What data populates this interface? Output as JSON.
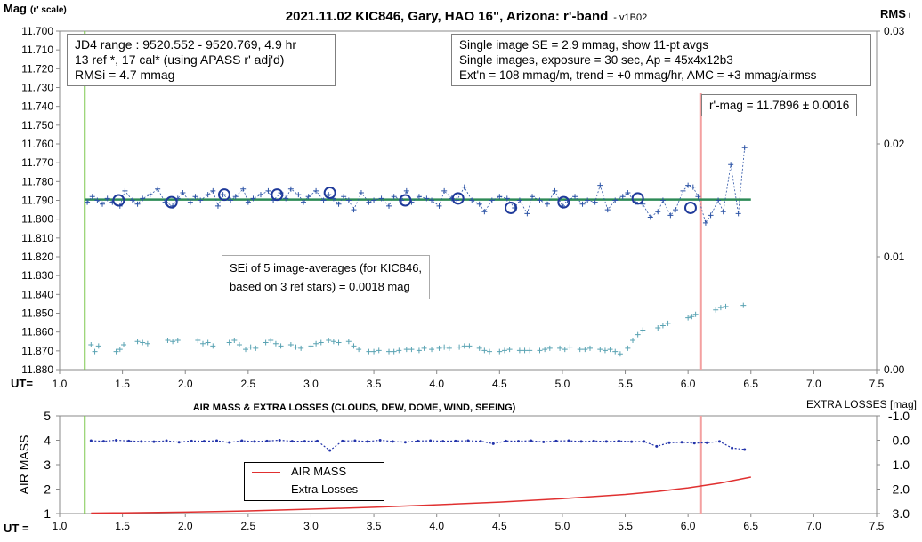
{
  "header": {
    "title": "2021.11.02 KIC846, Gary, HAO 16\", Arizona: r'-band",
    "version": "- v1B02",
    "left_axis_label": "Mag",
    "left_axis_sub": "(r' scale)",
    "right_axis_label": "RMS",
    "right_axis_sub": "i",
    "ut_label": "UT="
  },
  "info_left": [
    "JD4 range : 9520.552 - 9520.769,  4.9  hr",
    "13 ref *, 17 cal* (using APASS r' adj'd)",
    "RMSi = 4.7 mmag"
  ],
  "info_right": [
    "Single image SE = 2.9 mmag, show  11-pt avgs",
    "Single images, exposure = 30 sec, Ap = 45x4x12b3",
    "Ext'n = 108 mmag/m, trend = +0  mmag/hr, AMC = +3 mmag/airmss"
  ],
  "mag_box": "r'-mag = 11.7896 ± 0.0016",
  "sei_box": [
    "SEi of 5 image-averages (for KIC846,",
    "based on 3 ref stars) = 0.0018 mag"
  ],
  "lower": {
    "title": "AIR MASS & EXTRA LOSSES (CLOUDS, DEW, DOME, WIND, SEEING)",
    "left_axis_label": "AIR MASS",
    "right_axis_label": "EXTRA LOSSES [mag]",
    "ut_label": "UT ="
  },
  "legend": {
    "air_mass": "AIR MASS",
    "extra_losses": "Extra Losses"
  },
  "chart_data": [
    {
      "type": "scatter",
      "title": "2021.11.02 KIC846, Gary, HAO 16\", Arizona: r'-band",
      "xlabel": "UT=",
      "ylabel": "Mag (r' scale)",
      "y2label": "RMS i",
      "xlim": [
        1.0,
        7.5
      ],
      "x_ticks": [
        "1.0",
        "1.5",
        "2.0",
        "2.5",
        "3.0",
        "3.5",
        "4.0",
        "4.5",
        "5.0",
        "5.5",
        "6.0",
        "6.5",
        "7.0",
        "7.5"
      ],
      "ylim": [
        11.7,
        11.88
      ],
      "y_inverted": true,
      "y_ticks": [
        "11.700",
        "11.710",
        "11.720",
        "11.730",
        "11.740",
        "11.750",
        "11.760",
        "11.770",
        "11.780",
        "11.790",
        "11.800",
        "11.810",
        "11.820",
        "11.830",
        "11.840",
        "11.850",
        "11.860",
        "11.870",
        "11.880"
      ],
      "y2lim": [
        0.0,
        0.03
      ],
      "y2_ticks": [
        "0.00",
        "0.01",
        "0.02",
        "0.03"
      ],
      "grid": false,
      "colors": {
        "mag": "#2d54a6",
        "avg": "#1f3a9a",
        "rms": "#5aa3b3",
        "fit": "#2e8b57",
        "vline_start": "#7ec850",
        "vline_end": "#f4a0a0"
      },
      "vlines": [
        1.2,
        6.1
      ],
      "fit_mag": 11.7896,
      "fit_x": [
        1.2,
        6.5
      ],
      "series": [
        {
          "kind": "mag",
          "x": [
            1.22,
            1.26,
            1.3,
            1.34,
            1.38,
            1.42,
            1.48,
            1.52,
            1.58,
            1.62,
            1.66,
            1.72,
            1.78,
            1.84,
            1.9,
            1.94,
            1.98,
            2.04,
            2.08,
            2.12,
            2.18,
            2.22,
            2.26,
            2.3,
            2.36,
            2.4,
            2.46,
            2.5,
            2.54,
            2.6,
            2.66,
            2.7,
            2.76,
            2.8,
            2.84,
            2.9,
            2.94,
            2.98,
            3.04,
            3.1,
            3.14,
            3.18,
            3.22,
            3.26,
            3.3,
            3.34,
            3.4,
            3.46,
            3.5,
            3.56,
            3.62,
            3.66,
            3.72,
            3.76,
            3.8,
            3.86,
            3.92,
            3.96,
            4.02,
            4.06,
            4.12,
            4.16,
            4.22,
            4.28,
            4.34,
            4.38,
            4.44,
            4.5,
            4.56,
            4.62,
            4.66,
            4.72,
            4.76,
            4.82,
            4.88,
            4.94,
            5.0,
            5.04,
            5.1,
            5.16,
            5.2,
            5.26,
            5.3,
            5.36,
            5.42,
            5.48,
            5.52,
            5.58,
            5.64,
            5.7,
            5.76,
            5.8,
            5.86,
            5.9,
            5.96,
            6.0,
            6.04,
            6.08,
            6.14,
            6.18,
            6.24,
            6.28,
            6.34,
            6.4,
            6.45
          ],
          "y": [
            11.791,
            11.788,
            11.79,
            11.792,
            11.789,
            11.791,
            11.793,
            11.785,
            11.79,
            11.792,
            11.789,
            11.787,
            11.784,
            11.791,
            11.793,
            11.789,
            11.786,
            11.791,
            11.788,
            11.79,
            11.787,
            11.785,
            11.793,
            11.787,
            11.79,
            11.788,
            11.784,
            11.791,
            11.789,
            11.787,
            11.785,
            11.79,
            11.786,
            11.789,
            11.784,
            11.787,
            11.791,
            11.788,
            11.785,
            11.79,
            11.787,
            11.789,
            11.792,
            11.788,
            11.79,
            11.795,
            11.786,
            11.791,
            11.79,
            11.789,
            11.793,
            11.788,
            11.79,
            11.785,
            11.791,
            11.788,
            11.789,
            11.79,
            11.793,
            11.785,
            11.789,
            11.79,
            11.783,
            11.79,
            11.792,
            11.796,
            11.79,
            11.788,
            11.789,
            11.794,
            11.79,
            11.797,
            11.788,
            11.79,
            11.792,
            11.785,
            11.793,
            11.79,
            11.788,
            11.792,
            11.79,
            11.791,
            11.782,
            11.795,
            11.79,
            11.788,
            11.786,
            11.791,
            11.792,
            11.799,
            11.796,
            11.79,
            11.798,
            11.795,
            11.785,
            11.782,
            11.783,
            11.788,
            11.802,
            11.798,
            11.79,
            11.796,
            11.771,
            11.797,
            11.762
          ]
        },
        {
          "kind": "avg",
          "x": [
            1.47,
            1.89,
            2.31,
            2.73,
            3.15,
            3.75,
            4.17,
            4.59,
            5.01,
            5.6,
            6.02
          ],
          "y": [
            11.79,
            11.791,
            11.787,
            11.787,
            11.786,
            11.79,
            11.789,
            11.794,
            11.791,
            11.789,
            11.794
          ]
        },
        {
          "kind": "rms",
          "x": [
            1.25,
            1.28,
            1.31,
            1.45,
            1.48,
            1.51,
            1.62,
            1.66,
            1.7,
            1.86,
            1.9,
            1.94,
            2.1,
            2.14,
            2.18,
            2.22,
            2.35,
            2.39,
            2.43,
            2.48,
            2.52,
            2.56,
            2.64,
            2.68,
            2.72,
            2.76,
            2.84,
            2.88,
            2.92,
            3.0,
            3.04,
            3.08,
            3.14,
            3.18,
            3.22,
            3.3,
            3.34,
            3.38,
            3.46,
            3.5,
            3.54,
            3.62,
            3.66,
            3.7,
            3.76,
            3.8,
            3.86,
            3.9,
            3.96,
            4.02,
            4.06,
            4.1,
            4.18,
            4.22,
            4.26,
            4.34,
            4.38,
            4.42,
            4.5,
            4.54,
            4.58,
            4.66,
            4.7,
            4.74,
            4.82,
            4.86,
            4.9,
            4.98,
            5.02,
            5.06,
            5.14,
            5.18,
            5.22,
            5.3,
            5.34,
            5.38,
            5.42,
            5.46,
            5.52,
            5.56,
            5.6,
            5.64,
            5.76,
            5.8,
            5.84,
            6.0,
            6.03,
            6.06,
            6.22,
            6.26,
            6.3,
            6.44
          ],
          "y": [
            0.0022,
            0.0016,
            0.0021,
            0.0016,
            0.0018,
            0.0022,
            0.0025,
            0.0024,
            0.0023,
            0.0026,
            0.0025,
            0.0026,
            0.0026,
            0.0023,
            0.0024,
            0.0021,
            0.0024,
            0.0026,
            0.0022,
            0.0018,
            0.002,
            0.0019,
            0.0024,
            0.0026,
            0.0023,
            0.0021,
            0.0022,
            0.002,
            0.0019,
            0.0021,
            0.0023,
            0.0024,
            0.0026,
            0.0025,
            0.0024,
            0.0025,
            0.0021,
            0.0018,
            0.0016,
            0.0016,
            0.0017,
            0.0016,
            0.0016,
            0.0017,
            0.0018,
            0.0018,
            0.0017,
            0.0019,
            0.0018,
            0.0019,
            0.002,
            0.0019,
            0.002,
            0.0021,
            0.0021,
            0.0019,
            0.0017,
            0.0016,
            0.0016,
            0.0017,
            0.0018,
            0.0017,
            0.0017,
            0.0017,
            0.0017,
            0.0018,
            0.0019,
            0.0019,
            0.0018,
            0.002,
            0.0018,
            0.0018,
            0.0019,
            0.0018,
            0.0017,
            0.0018,
            0.0016,
            0.0014,
            0.0019,
            0.0026,
            0.0031,
            0.0035,
            0.0037,
            0.0039,
            0.0041,
            0.0046,
            0.0047,
            0.0049,
            0.0053,
            0.0055,
            0.0056,
            0.0057
          ]
        }
      ]
    },
    {
      "type": "line",
      "title": "AIR MASS & EXTRA LOSSES (CLOUDS, DEW, DOME, WIND, SEEING)",
      "xlabel": "UT =",
      "ylabel": "AIR MASS",
      "y2label": "EXTRA LOSSES [mag]",
      "xlim": [
        1.0,
        7.5
      ],
      "x_ticks": [
        "1.0",
        "1.5",
        "2.0",
        "2.5",
        "3.0",
        "3.5",
        "4.0",
        "4.5",
        "5.0",
        "5.5",
        "6.0",
        "6.5",
        "7.0",
        "7.5"
      ],
      "ylim": [
        1,
        5
      ],
      "y_ticks": [
        "1",
        "2",
        "3",
        "4",
        "5"
      ],
      "y2lim": [
        -1.0,
        3.0
      ],
      "y2_ticks": [
        "-1.0",
        "0.0",
        "1.0",
        "2.0",
        "3.0"
      ],
      "legend_position": "bottom-left",
      "colors": {
        "air_mass": "#e03030",
        "extra_losses": "#2233aa"
      },
      "series": [
        {
          "name": "AIR MASS",
          "x": [
            1.25,
            1.5,
            2.0,
            2.5,
            3.0,
            3.5,
            4.0,
            4.5,
            5.0,
            5.5,
            5.75,
            6.0,
            6.25,
            6.5
          ],
          "y": [
            1.02,
            1.03,
            1.06,
            1.11,
            1.18,
            1.26,
            1.36,
            1.47,
            1.61,
            1.78,
            1.9,
            2.05,
            2.24,
            2.49
          ]
        },
        {
          "name": "Extra Losses",
          "x": [
            1.25,
            1.35,
            1.45,
            1.55,
            1.65,
            1.75,
            1.85,
            1.95,
            2.05,
            2.15,
            2.25,
            2.35,
            2.45,
            2.55,
            2.65,
            2.75,
            2.85,
            2.95,
            3.05,
            3.15,
            3.25,
            3.35,
            3.45,
            3.55,
            3.65,
            3.75,
            3.85,
            3.95,
            4.05,
            4.15,
            4.25,
            4.35,
            4.45,
            4.55,
            4.65,
            4.75,
            4.85,
            4.95,
            5.05,
            5.15,
            5.25,
            5.35,
            5.45,
            5.55,
            5.65,
            5.75,
            5.85,
            5.95,
            6.05,
            6.15,
            6.25,
            6.35,
            6.45
          ],
          "y": [
            0.02,
            0.04,
            0.0,
            0.03,
            0.05,
            0.06,
            0.02,
            0.08,
            0.03,
            0.04,
            0.02,
            0.09,
            0.02,
            0.05,
            0.03,
            0.0,
            0.04,
            0.04,
            0.03,
            0.42,
            0.03,
            0.02,
            0.05,
            0.0,
            0.05,
            0.08,
            0.03,
            0.02,
            0.04,
            0.03,
            0.02,
            0.04,
            0.14,
            0.03,
            0.04,
            0.02,
            0.07,
            0.03,
            0.02,
            0.05,
            0.03,
            0.05,
            0.03,
            0.06,
            0.05,
            0.25,
            0.1,
            0.08,
            0.12,
            0.1,
            0.05,
            0.32,
            0.38
          ]
        }
      ]
    }
  ]
}
